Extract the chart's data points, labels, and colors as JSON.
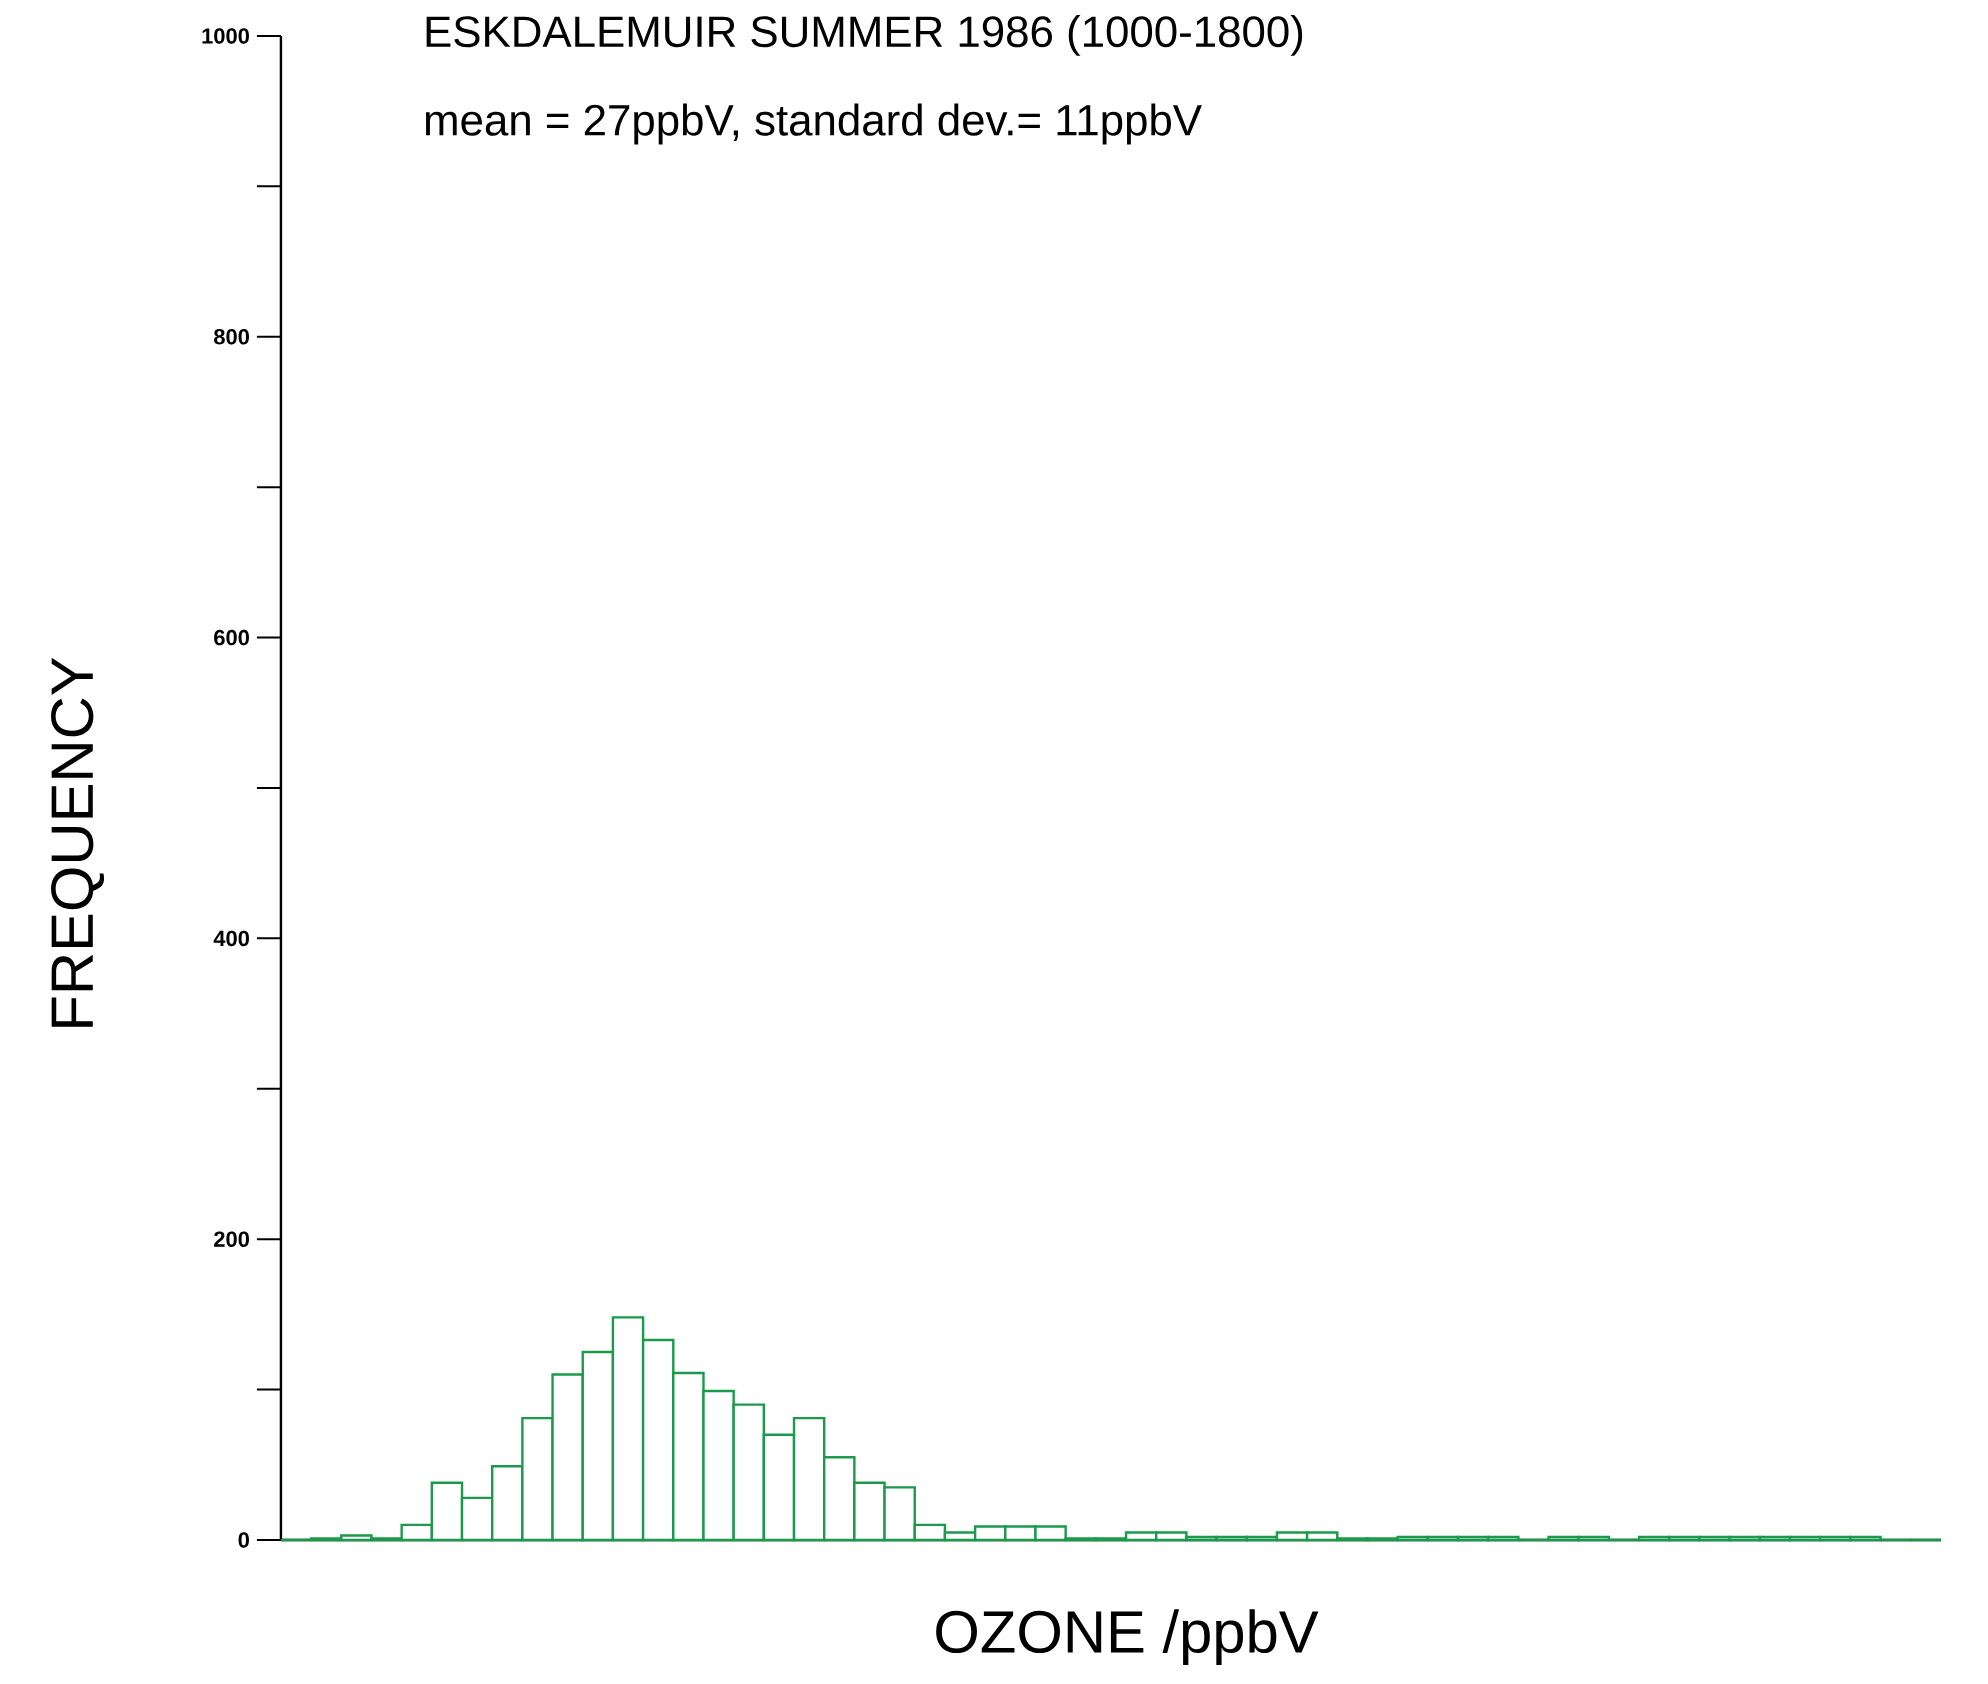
{
  "chart_data": {
    "type": "bar",
    "title": "ESKDALEMUIR SUMMER 1986 (1000-1800)",
    "subtitle": "mean = 27ppbV, standard dev.= 11ppbV",
    "xlabel": "OZONE /ppbV",
    "ylabel": "FREQUENCY",
    "categories": [
      null,
      null,
      null,
      null,
      null,
      null,
      null,
      null,
      null,
      null,
      null,
      null,
      null,
      null,
      null,
      null,
      null,
      null,
      null,
      null,
      null,
      null,
      null,
      null,
      null,
      null,
      null,
      null,
      null,
      null,
      null,
      null,
      null,
      null,
      null,
      null,
      null,
      null,
      null,
      null,
      null,
      null,
      null,
      null,
      null,
      null,
      null,
      null,
      null,
      null,
      null,
      null,
      null,
      null,
      null
    ],
    "values": [
      0,
      1,
      3,
      1,
      10,
      38,
      28,
      49,
      81,
      110,
      125,
      148,
      133,
      111,
      99,
      90,
      70,
      81,
      55,
      38,
      35,
      10,
      5,
      9,
      9,
      9,
      1,
      1,
      5,
      5,
      2,
      2,
      2,
      5,
      5,
      1,
      1,
      2,
      2,
      2,
      2,
      0,
      2,
      2,
      0,
      2,
      2,
      2,
      2,
      2,
      2,
      2,
      2,
      0,
      0
    ],
    "color": "#1a9a4a",
    "ylim": [
      0,
      1000
    ],
    "yticks": [
      0,
      {
        "value": 100,
        "label": null
      },
      200,
      {
        "value": 300,
        "label": null
      },
      400,
      {
        "value": 500,
        "label": null
      },
      600,
      {
        "value": 700,
        "label": null
      },
      800,
      {
        "value": 900,
        "label": null
      },
      1000
    ]
  }
}
